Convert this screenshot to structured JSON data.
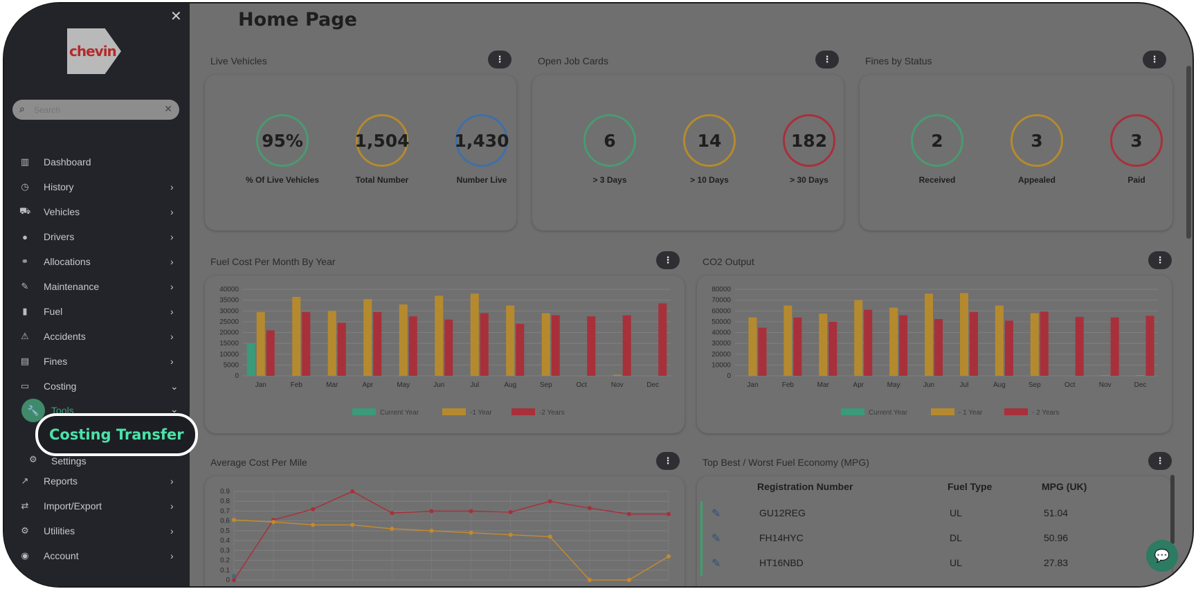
{
  "sidebar": {
    "logo_text": "chevin",
    "search_placeholder": "Search",
    "items": [
      {
        "label": "Dashboard",
        "icon": "chart-icon",
        "chevron": ""
      },
      {
        "label": "History",
        "icon": "clock-icon",
        "chevron": "›"
      },
      {
        "label": "Vehicles",
        "icon": "car-icon",
        "chevron": "›"
      },
      {
        "label": "Drivers",
        "icon": "user-icon",
        "chevron": "›"
      },
      {
        "label": "Allocations",
        "icon": "link-icon",
        "chevron": "›"
      },
      {
        "label": "Maintenance",
        "icon": "wrench-icon",
        "chevron": "›"
      },
      {
        "label": "Fuel",
        "icon": "fuel-icon",
        "chevron": "›"
      },
      {
        "label": "Accidents",
        "icon": "crash-icon",
        "chevron": "›"
      },
      {
        "label": "Fines",
        "icon": "document-icon",
        "chevron": "›"
      },
      {
        "label": "Costing",
        "icon": "money-icon",
        "chevron": "⌄"
      }
    ],
    "tools_label": "Tools",
    "costing_transfer_label": "Costing Transfer",
    "settings_label": "Settings",
    "items_after": [
      {
        "label": "Reports",
        "icon": "reports-icon",
        "chevron": "›"
      },
      {
        "label": "Import/Export",
        "icon": "transfer-icon",
        "chevron": "›"
      },
      {
        "label": "Utilities",
        "icon": "cogs-icon",
        "chevron": "›"
      },
      {
        "label": "Account",
        "icon": "account-icon",
        "chevron": "›"
      }
    ]
  },
  "page": {
    "title": "Home Page"
  },
  "live_vehicles": {
    "title": "Live Vehicles",
    "kpis": [
      {
        "value": "95%",
        "label": "% Of Live Vehicles",
        "color": "#4a9a72"
      },
      {
        "value": "1,504",
        "label": "Total Number",
        "color": "#b58a2e"
      },
      {
        "value": "1,430",
        "label": "Number Live",
        "color": "#3f6fa8"
      }
    ]
  },
  "open_job_cards": {
    "title": "Open Job Cards",
    "kpis": [
      {
        "value": "6",
        "label": "> 3 Days",
        "color": "#4a9a72"
      },
      {
        "value": "14",
        "label": "> 10 Days",
        "color": "#b58a2e"
      },
      {
        "value": "182",
        "label": "> 30 Days",
        "color": "#a8303a"
      }
    ]
  },
  "fines_by_status": {
    "title": "Fines by Status",
    "kpis": [
      {
        "value": "2",
        "label": "Received",
        "color": "#4a9a72"
      },
      {
        "value": "3",
        "label": "Appealed",
        "color": "#b58a2e"
      },
      {
        "value": "3",
        "label": "Paid",
        "color": "#a8303a"
      }
    ]
  },
  "fuel_cost": {
    "title": "Fuel Cost Per Month By Year"
  },
  "co2_output": {
    "title": "CO2 Output"
  },
  "avg_cost_mile": {
    "title": "Average Cost Per Mile"
  },
  "fuel_economy": {
    "title": "Top Best / Worst Fuel Economy (MPG)",
    "columns": [
      "Registration Number",
      "Fuel Type",
      "MPG (UK)"
    ],
    "rows": [
      {
        "reg": "GU12REG",
        "fuel": "UL",
        "mpg": "51.04"
      },
      {
        "reg": "FH14HYC",
        "fuel": "DL",
        "mpg": "50.96"
      },
      {
        "reg": "HT16NBD",
        "fuel": "UL",
        "mpg": "27.83"
      }
    ]
  },
  "kebab_glyph": "⋮",
  "chart_data": [
    {
      "type": "bar",
      "categories": [
        "Jan",
        "Feb",
        "Mar",
        "Apr",
        "May",
        "Jun",
        "Jul",
        "Aug",
        "Sep",
        "Oct",
        "Nov",
        "Dec"
      ],
      "ylim": [
        0,
        40000
      ],
      "yticks": [
        0,
        5000,
        10000,
        15000,
        20000,
        25000,
        30000,
        35000,
        40000
      ],
      "series": [
        {
          "name": "Current Year",
          "color": "#3a9a7a",
          "values": [
            15000,
            0,
            0,
            0,
            0,
            0,
            0,
            0,
            0,
            0,
            0,
            0
          ]
        },
        {
          "name": "-1 Year",
          "color": "#b58a2e",
          "values": [
            29500,
            36500,
            30000,
            35500,
            33000,
            37000,
            38000,
            32500,
            29000,
            0,
            500,
            0
          ]
        },
        {
          "name": "-2 Years",
          "color": "#a8303a",
          "values": [
            21000,
            29500,
            24500,
            29500,
            27500,
            26000,
            29000,
            24000,
            28000,
            27500,
            28000,
            33500
          ]
        }
      ]
    },
    {
      "type": "bar",
      "categories": [
        "Jan",
        "Feb",
        "Mar",
        "Apr",
        "May",
        "Jun",
        "Jul",
        "Aug",
        "Sep",
        "Oct",
        "Nov",
        "Dec"
      ],
      "ylim": [
        0,
        80000
      ],
      "yticks": [
        0,
        10000,
        20000,
        30000,
        40000,
        50000,
        60000,
        70000,
        80000
      ],
      "series": [
        {
          "name": "Current Year",
          "color": "#3a9a7a",
          "values": [
            500,
            0,
            0,
            0,
            0,
            0,
            0,
            0,
            0,
            0,
            0,
            0
          ]
        },
        {
          "name": "- 1 Year",
          "color": "#b58a2e",
          "values": [
            54000,
            65000,
            57500,
            70000,
            63000,
            76000,
            76500,
            65000,
            58000,
            0,
            500,
            500
          ]
        },
        {
          "name": "- 2 Years",
          "color": "#a8303a",
          "values": [
            44500,
            54000,
            50000,
            61000,
            56000,
            52500,
            59000,
            51000,
            59500,
            54500,
            54000,
            55500
          ]
        }
      ]
    },
    {
      "type": "line",
      "x": [
        0,
        1,
        2,
        3,
        4,
        5,
        6,
        7,
        8,
        9,
        10,
        11
      ],
      "ylim": [
        0,
        0.9
      ],
      "yticks": [
        0,
        0.1,
        0.2,
        0.3,
        0.4,
        0.5,
        0.6,
        0.7,
        0.8,
        0.9
      ],
      "series": [
        {
          "color": "#a8303a",
          "values": [
            0,
            0.61,
            0.72,
            0.9,
            0.68,
            0.7,
            0.7,
            0.69,
            0.8,
            0.73,
            0.67,
            0.67
          ]
        },
        {
          "color": "#c48a2e",
          "values": [
            0.61,
            0.59,
            0.56,
            0.56,
            0.52,
            0.5,
            0.48,
            0.46,
            0.44,
            0,
            0,
            0.24
          ]
        },
        {
          "color": "#3a6a8a",
          "values": [
            0.04,
            null,
            null,
            null,
            null,
            null,
            null,
            null,
            null,
            null,
            null,
            null
          ]
        }
      ]
    }
  ]
}
